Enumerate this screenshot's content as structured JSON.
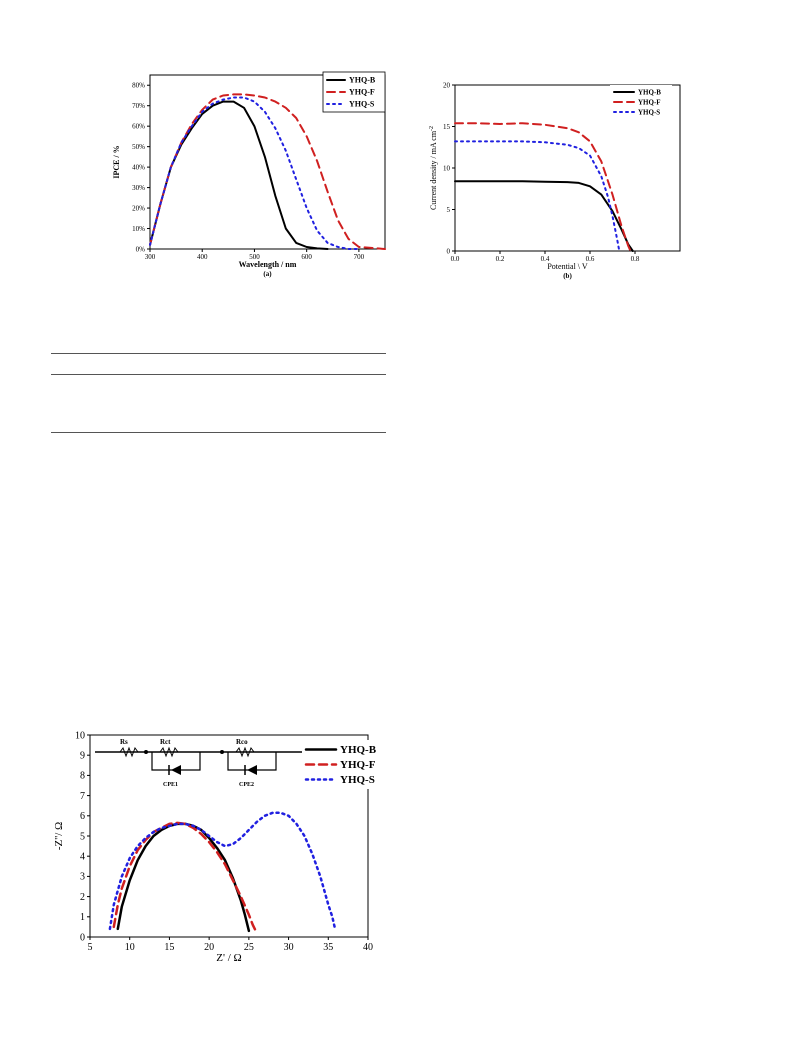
{
  "colors": {
    "b": "#000000",
    "f": "#d02020",
    "s": "#2020e0"
  },
  "chart_data": [
    {
      "type": "line",
      "caption": "(a)",
      "xlabel": "Wavelength / nm",
      "ylabel": "IPCE / %",
      "xlim": [
        300,
        750
      ],
      "ylim": [
        0,
        85
      ],
      "xticks": [
        300,
        400,
        500,
        600,
        700
      ],
      "yticks": [
        0,
        10,
        20,
        30,
        40,
        50,
        60,
        70,
        80
      ],
      "yticklabels": [
        "0%",
        "10%",
        "20%",
        "30%",
        "40%",
        "50%",
        "60%",
        "70%",
        "80%"
      ],
      "legend_position": "top-right",
      "series": [
        {
          "name": "YHQ-B",
          "color": "#000000",
          "dash": "solid",
          "x": [
            300,
            320,
            340,
            360,
            380,
            400,
            420,
            440,
            460,
            480,
            500,
            520,
            540,
            560,
            580,
            600,
            620,
            640
          ],
          "y": [
            2,
            22,
            40,
            51,
            59,
            66,
            70,
            72,
            72,
            69,
            60,
            45,
            26,
            10,
            3,
            1,
            0.3,
            0
          ]
        },
        {
          "name": "YHQ-F",
          "color": "#d02020",
          "dash": "8 5",
          "x": [
            300,
            320,
            340,
            360,
            380,
            400,
            420,
            440,
            460,
            480,
            500,
            520,
            540,
            560,
            580,
            600,
            620,
            640,
            660,
            680,
            700,
            750
          ],
          "y": [
            2,
            22,
            40,
            52,
            61,
            68,
            73,
            75,
            75.5,
            75.5,
            75,
            74,
            72,
            69,
            64,
            55,
            43,
            28,
            14,
            5,
            1,
            0
          ]
        },
        {
          "name": "YHQ-S",
          "color": "#2020e0",
          "dash": "2 4",
          "x": [
            300,
            320,
            340,
            360,
            380,
            400,
            420,
            440,
            460,
            480,
            500,
            520,
            540,
            560,
            580,
            600,
            620,
            640,
            660,
            680,
            700
          ],
          "y": [
            2,
            22,
            40,
            52,
            60,
            67,
            71,
            73,
            74,
            74,
            72,
            67,
            59,
            48,
            34,
            20,
            9,
            3,
            1,
            0,
            0
          ]
        }
      ]
    },
    {
      "type": "line",
      "caption": "(b)",
      "xlabel": "Potential \\ V",
      "ylabel": "Current density / mA cm",
      "ylabel_sup": "-2",
      "xlim": [
        0,
        1.0
      ],
      "ylim": [
        0,
        20
      ],
      "xticks": [
        0.0,
        0.2,
        0.4,
        0.6,
        0.8
      ],
      "xticklabels": [
        "0.0",
        "0.2",
        "0.4",
        "0.6",
        "0.8"
      ],
      "yticks": [
        0,
        5,
        10,
        15,
        20
      ],
      "legend_position": "top-right",
      "series": [
        {
          "name": "YHQ-B",
          "color": "#000000",
          "dash": "solid",
          "x": [
            0,
            0.1,
            0.2,
            0.3,
            0.4,
            0.5,
            0.55,
            0.6,
            0.65,
            0.7,
            0.74,
            0.77,
            0.79
          ],
          "y": [
            8.4,
            8.4,
            8.4,
            8.4,
            8.35,
            8.3,
            8.2,
            7.8,
            6.8,
            4.8,
            2.6,
            0.8,
            0
          ]
        },
        {
          "name": "YHQ-F",
          "color": "#d02020",
          "dash": "8 5",
          "x": [
            0,
            0.1,
            0.2,
            0.3,
            0.4,
            0.5,
            0.55,
            0.6,
            0.65,
            0.7,
            0.74,
            0.77,
            0.78
          ],
          "y": [
            15.4,
            15.4,
            15.3,
            15.4,
            15.2,
            14.8,
            14.3,
            13.2,
            10.8,
            6.8,
            3,
            0.6,
            0
          ]
        },
        {
          "name": "YHQ-S",
          "color": "#2020e0",
          "dash": "2 4",
          "x": [
            0,
            0.1,
            0.2,
            0.3,
            0.4,
            0.5,
            0.55,
            0.6,
            0.65,
            0.68,
            0.7,
            0.72,
            0.73
          ],
          "y": [
            13.2,
            13.2,
            13.2,
            13.2,
            13.1,
            12.8,
            12.4,
            11.5,
            9.0,
            6.5,
            4.2,
            1.5,
            0
          ]
        }
      ]
    },
    {
      "type": "scatter",
      "caption": "",
      "xlabel": "Z' / Ω",
      "ylabel": "-Z''/ Ω",
      "xlim": [
        5,
        40
      ],
      "ylim": [
        0,
        10
      ],
      "xticks": [
        5,
        10,
        15,
        20,
        25,
        30,
        35,
        40
      ],
      "yticks": [
        0,
        1,
        2,
        3,
        4,
        5,
        6,
        7,
        8,
        9,
        10
      ],
      "legend_position": "top-right",
      "circuit_labels": [
        "Rs",
        "Rct",
        "Rco",
        "CPE1",
        "CPE2"
      ],
      "series": [
        {
          "name": "YHQ-B",
          "color": "#000000",
          "dash": "solid",
          "x": [
            8.5,
            9,
            10,
            11,
            12,
            13,
            14,
            15,
            16,
            17,
            18,
            19,
            20,
            21,
            22,
            23,
            24,
            24.5,
            25
          ],
          "y": [
            0.4,
            1.5,
            2.8,
            3.8,
            4.5,
            5.0,
            5.3,
            5.5,
            5.6,
            5.6,
            5.5,
            5.3,
            4.9,
            4.4,
            3.8,
            2.9,
            1.8,
            1.1,
            0.3
          ]
        },
        {
          "name": "YHQ-F",
          "color": "#d02020",
          "dash": "8 5",
          "x": [
            8,
            8.5,
            9,
            10,
            11,
            12,
            13,
            14,
            15,
            16,
            17,
            18,
            19,
            20,
            21,
            22,
            23,
            24,
            25,
            25.5,
            26
          ],
          "y": [
            0.5,
            1.6,
            2.4,
            3.5,
            4.3,
            4.8,
            5.2,
            5.4,
            5.6,
            5.65,
            5.6,
            5.4,
            5.1,
            4.7,
            4.2,
            3.6,
            2.8,
            2.0,
            1.1,
            0.6,
            0.2
          ]
        },
        {
          "name": "YHQ-S",
          "color": "#2020e0",
          "dash": "2 4",
          "x": [
            7.5,
            8,
            9,
            10,
            11,
            12,
            13,
            14,
            15,
            16,
            17,
            18,
            19,
            20,
            21,
            22,
            23,
            24,
            25,
            26,
            27,
            28,
            29,
            30,
            31,
            32,
            33,
            34,
            34.5,
            35,
            35.5,
            35.8
          ],
          "y": [
            0.4,
            1.6,
            3.0,
            3.9,
            4.5,
            4.9,
            5.2,
            5.4,
            5.5,
            5.6,
            5.6,
            5.5,
            5.3,
            5.0,
            4.7,
            4.5,
            4.6,
            4.9,
            5.3,
            5.7,
            6.0,
            6.15,
            6.15,
            6.0,
            5.6,
            5.0,
            4.1,
            3.0,
            2.3,
            1.6,
            1.0,
            0.5
          ]
        }
      ]
    }
  ]
}
